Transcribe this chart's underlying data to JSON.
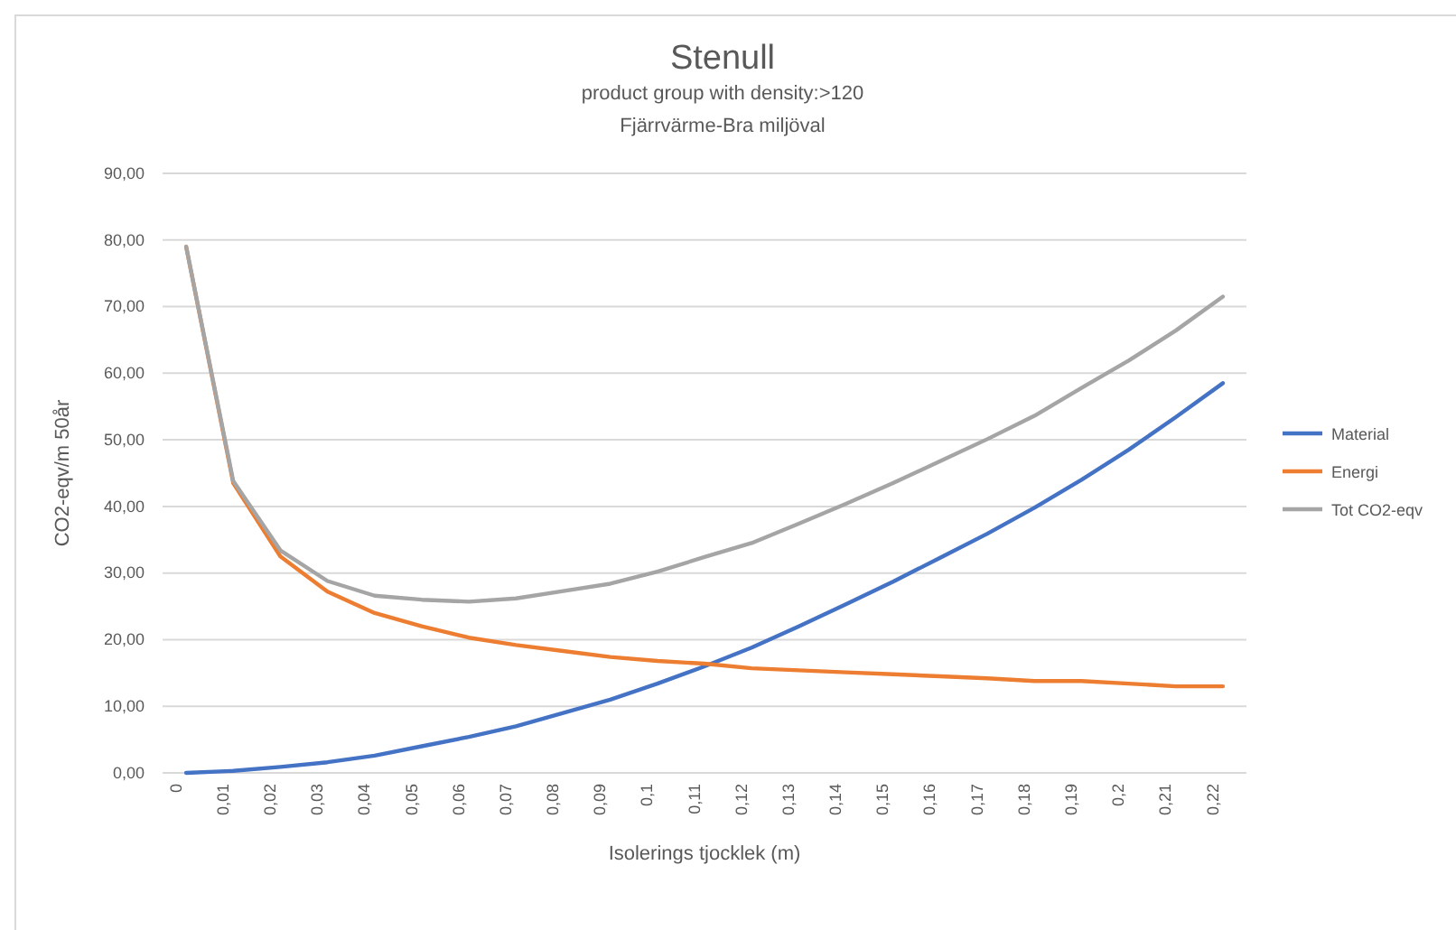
{
  "chart_data": {
    "type": "line",
    "title": "Stenull",
    "subtitle": "product group with density:>120\nFjärrvärme-Bra miljöval",
    "xlabel": "Isolerings tjocklek (m)",
    "ylabel": "CO2-eqv/m 50år",
    "categories": [
      "0",
      "0,01",
      "0,02",
      "0,03",
      "0,04",
      "0,05",
      "0,06",
      "0,07",
      "0,08",
      "0,09",
      "0,1",
      "0,11",
      "0,12",
      "0,13",
      "0,14",
      "0,15",
      "0,16",
      "0,17",
      "0,18",
      "0,19",
      "0,2",
      "0,21",
      "0,22"
    ],
    "series": [
      {
        "name": "Material",
        "color": "#4472c4",
        "values": [
          0,
          0.3,
          0.9,
          1.6,
          2.6,
          4,
          5.4,
          7,
          9,
          11,
          13.4,
          16,
          18.8,
          22,
          25.3,
          28.7,
          32.3,
          35.9,
          39.8,
          44,
          48.5,
          53.4,
          58.5
        ]
      },
      {
        "name": "Energi",
        "color": "#ed7d31",
        "values": [
          79,
          43.5,
          32.5,
          27.2,
          24,
          22,
          20.3,
          19.2,
          18.3,
          17.4,
          16.8,
          16.4,
          15.7,
          15.4,
          15.1,
          14.8,
          14.5,
          14.2,
          13.8,
          13.8,
          13.4,
          13,
          13
        ]
      },
      {
        "name": "Tot CO2-eqv",
        "color": "#a5a5a5",
        "values": [
          79,
          43.8,
          33.4,
          28.8,
          26.6,
          26,
          25.7,
          26.2,
          27.3,
          28.4,
          30.2,
          32.4,
          34.5,
          37.4,
          40.4,
          43.5,
          46.8,
          50.1,
          53.6,
          57.8,
          61.9,
          66.4,
          71.5
        ]
      }
    ],
    "ylim": [
      0,
      90
    ],
    "yticks": [
      {
        "value": 0,
        "label": "0,00"
      },
      {
        "value": 10,
        "label": "10,00"
      },
      {
        "value": 20,
        "label": "20,00"
      },
      {
        "value": 30,
        "label": "30,00"
      },
      {
        "value": 40,
        "label": "40,00"
      },
      {
        "value": 50,
        "label": "50,00"
      },
      {
        "value": 60,
        "label": "60,00"
      },
      {
        "value": 70,
        "label": "70,00"
      },
      {
        "value": 80,
        "label": "80,00"
      },
      {
        "value": 90,
        "label": "90,00"
      }
    ],
    "grid": "y",
    "legend": "right",
    "marker": "none",
    "line_style": "solid"
  }
}
